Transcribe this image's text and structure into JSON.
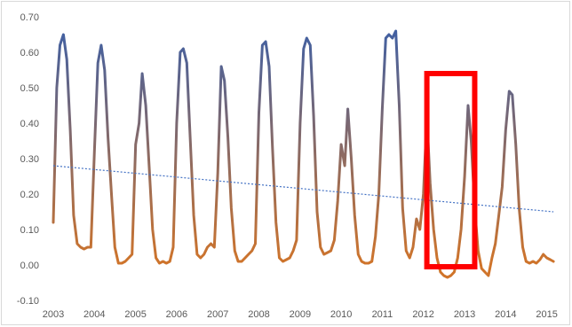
{
  "chart_data": {
    "type": "line",
    "title": "",
    "xlabel": "",
    "ylabel": "",
    "ylim": [
      -0.1,
      0.7
    ],
    "xlim": [
      "2003-01-01",
      "2015-04-01"
    ],
    "y_ticks": [
      "0.70",
      "0.60",
      "0.50",
      "0.40",
      "0.30",
      "0.20",
      "0.10",
      "0.00",
      "-0.10"
    ],
    "x_ticks": [
      "2003",
      "2004",
      "2005",
      "2006",
      "2007",
      "2008",
      "2009",
      "2010",
      "2011",
      "2012",
      "2013",
      "2014",
      "2015"
    ],
    "grid": false,
    "legend": "none",
    "line_gradient": {
      "top_color": "#3a5fa8",
      "bottom_color": "#d0742a"
    },
    "trend_color": "#4472c4",
    "highlight_color": "#ff0000",
    "series": [
      {
        "x": [
          "2003-01-01",
          "2003-02-01",
          "2003-03-01",
          "2003-04-01",
          "2003-05-01",
          "2003-06-01",
          "2003-07-01",
          "2003-08-01",
          "2003-09-01",
          "2003-10-01",
          "2003-11-01",
          "2003-12-01",
          "2004-01-01",
          "2004-02-01",
          "2004-03-01",
          "2004-04-01",
          "2004-05-01",
          "2004-06-01",
          "2004-07-01",
          "2004-08-01",
          "2004-09-01",
          "2004-10-01",
          "2004-11-01",
          "2004-12-01",
          "2005-01-01",
          "2005-02-01",
          "2005-03-01",
          "2005-04-01",
          "2005-05-01",
          "2005-06-01",
          "2005-07-01",
          "2005-08-01",
          "2005-09-01",
          "2005-10-01",
          "2005-11-01",
          "2005-12-01",
          "2006-01-01",
          "2006-02-01",
          "2006-03-01",
          "2006-04-01",
          "2006-05-01",
          "2006-06-01",
          "2006-07-01",
          "2006-08-01",
          "2006-09-01",
          "2006-10-01",
          "2006-11-01",
          "2006-12-01",
          "2007-01-01",
          "2007-02-01",
          "2007-03-01",
          "2007-04-01",
          "2007-05-01",
          "2007-06-01",
          "2007-07-01",
          "2007-08-01",
          "2007-09-01",
          "2007-10-01",
          "2007-11-01",
          "2007-12-01",
          "2008-01-01",
          "2008-02-01",
          "2008-03-01",
          "2008-04-01",
          "2008-05-01",
          "2008-06-01",
          "2008-07-01",
          "2008-08-01",
          "2008-09-01",
          "2008-10-01",
          "2008-11-01",
          "2008-12-01",
          "2009-01-01",
          "2009-02-01",
          "2009-03-01",
          "2009-04-01",
          "2009-05-01",
          "2009-06-01",
          "2009-07-01",
          "2009-08-01",
          "2009-09-01",
          "2009-10-01",
          "2009-11-01",
          "2009-12-01",
          "2010-01-01",
          "2010-02-01",
          "2010-03-01",
          "2010-04-01",
          "2010-05-01",
          "2010-06-01",
          "2010-07-01",
          "2010-08-01",
          "2010-09-01",
          "2010-10-01",
          "2010-11-01",
          "2010-12-01",
          "2011-01-01",
          "2011-02-01",
          "2011-03-01",
          "2011-04-01",
          "2011-05-01",
          "2011-06-01",
          "2011-07-01",
          "2011-08-01",
          "2011-09-01",
          "2011-10-01",
          "2011-11-01",
          "2011-12-01",
          "2012-01-01",
          "2012-02-01",
          "2012-03-01",
          "2012-04-01",
          "2012-05-01",
          "2012-06-01",
          "2012-07-01",
          "2012-08-01",
          "2012-09-01",
          "2012-10-01",
          "2012-11-01",
          "2012-12-01",
          "2013-01-01",
          "2013-02-01",
          "2013-03-01",
          "2013-04-01",
          "2013-05-01",
          "2013-06-01",
          "2013-07-01",
          "2013-08-01",
          "2013-09-01",
          "2013-10-01",
          "2013-11-01",
          "2013-12-01",
          "2014-01-01",
          "2014-02-01",
          "2014-03-01",
          "2014-04-01",
          "2014-05-01",
          "2014-06-01",
          "2014-07-01",
          "2014-08-01",
          "2014-09-01",
          "2014-10-01",
          "2014-11-01",
          "2014-12-01",
          "2015-01-01",
          "2015-02-01",
          "2015-03-01"
        ],
        "values": [
          0.12,
          0.5,
          0.62,
          0.65,
          0.58,
          0.38,
          0.14,
          0.06,
          0.05,
          0.045,
          0.05,
          0.05,
          0.32,
          0.57,
          0.62,
          0.55,
          0.36,
          0.2,
          0.05,
          0.005,
          0.005,
          0.01,
          0.02,
          0.03,
          0.34,
          0.4,
          0.54,
          0.45,
          0.28,
          0.1,
          0.02,
          0.005,
          0.01,
          0.005,
          0.01,
          0.05,
          0.4,
          0.6,
          0.61,
          0.57,
          0.36,
          0.14,
          0.03,
          0.02,
          0.03,
          0.05,
          0.06,
          0.05,
          0.26,
          0.56,
          0.52,
          0.36,
          0.16,
          0.04,
          0.01,
          0.01,
          0.02,
          0.03,
          0.04,
          0.06,
          0.43,
          0.62,
          0.63,
          0.56,
          0.33,
          0.12,
          0.02,
          0.01,
          0.015,
          0.02,
          0.04,
          0.07,
          0.4,
          0.61,
          0.64,
          0.62,
          0.42,
          0.15,
          0.05,
          0.03,
          0.035,
          0.04,
          0.07,
          0.18,
          0.34,
          0.28,
          0.44,
          0.3,
          0.14,
          0.03,
          0.01,
          0.005,
          0.005,
          0.01,
          0.08,
          0.2,
          0.44,
          0.64,
          0.65,
          0.64,
          0.66,
          0.45,
          0.16,
          0.04,
          0.02,
          0.05,
          0.13,
          0.1,
          0.2,
          0.42,
          0.23,
          0.1,
          0.02,
          -0.02,
          -0.03,
          -0.035,
          -0.03,
          -0.02,
          0.02,
          0.1,
          0.25,
          0.45,
          0.35,
          0.16,
          0.04,
          -0.01,
          -0.02,
          -0.03,
          0.02,
          0.06,
          0.14,
          0.22,
          0.38,
          0.49,
          0.48,
          0.34,
          0.16,
          0.05,
          0.01,
          0.005,
          0.01,
          0.005,
          0.015,
          0.03,
          0.02,
          0.015,
          0.01
        ]
      }
    ],
    "trendline": {
      "x": [
        "2003-01-01",
        "2015-03-01"
      ],
      "values": [
        0.28,
        0.15
      ]
    },
    "highlight": {
      "x": [
        "2012-02-01",
        "2013-04-01"
      ],
      "y": [
        -0.005,
        0.54
      ]
    }
  }
}
